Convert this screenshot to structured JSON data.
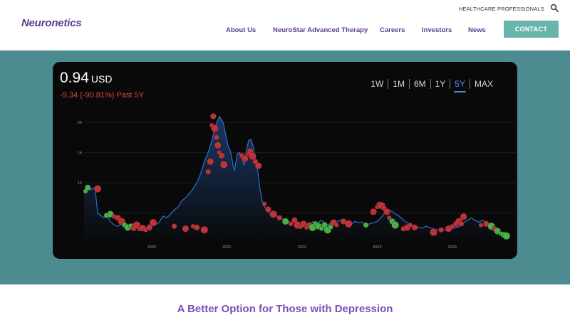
{
  "header": {
    "logo": "Neuronetics",
    "hcp_link": "HEALTHCARE PROFESSIONALS",
    "nav": [
      "About Us",
      "NeuroStar Advanced Therapy",
      "Careers",
      "Investors",
      "News"
    ],
    "contact": "CONTACT"
  },
  "stock": {
    "price": "0.94",
    "currency": "USD",
    "change": "-9.34 (-90.81%) Past 5Y",
    "ranges": [
      "1W",
      "1M",
      "6M",
      "1Y",
      "5Y",
      "MAX"
    ],
    "active_range": "5Y"
  },
  "colors": {
    "line": "#2f6fd0",
    "fill": "#0f2240",
    "up_marker": "#4cb84a",
    "down_marker": "#c8343a",
    "teal": "#4c8b8f",
    "brand": "#5b3c8e"
  },
  "chart_data": {
    "type": "line",
    "ylim": [
      0,
      22
    ],
    "y_ticks": [
      "10",
      "15",
      "20"
    ],
    "x_ticks": [
      "2020",
      "2021",
      "2022",
      "2023",
      "2024"
    ],
    "x_range": [
      2019.1,
      2024.75
    ],
    "series": [
      {
        "x": [
          2019.1,
          2019.13,
          2019.16,
          2019.19,
          2019.22,
          2019.25,
          2019.28,
          2019.32,
          2019.36,
          2019.4,
          2019.45,
          2019.5,
          2019.55,
          2019.6,
          2019.65,
          2019.7,
          2019.75,
          2019.8,
          2019.85,
          2019.9,
          2019.95,
          2020.0,
          2020.05,
          2020.1,
          2020.15,
          2020.2,
          2020.25,
          2020.3,
          2020.35,
          2020.4,
          2020.45,
          2020.5,
          2020.55,
          2020.6,
          2020.65,
          2020.7,
          2020.75,
          2020.8,
          2020.85,
          2020.9,
          2020.95,
          2021.0,
          2021.02,
          2021.04,
          2021.06,
          2021.08,
          2021.1,
          2021.12,
          2021.14,
          2021.17,
          2021.2,
          2021.23,
          2021.26,
          2021.29,
          2021.32,
          2021.35,
          2021.38,
          2021.41,
          2021.44,
          2021.47,
          2021.5,
          2021.53,
          2021.56,
          2021.6,
          2021.65,
          2021.7,
          2021.75,
          2021.8,
          2021.85,
          2021.9,
          2021.95,
          2022.0,
          2022.05,
          2022.1,
          2022.15,
          2022.2,
          2022.25,
          2022.3,
          2022.35,
          2022.4,
          2022.45,
          2022.5,
          2022.55,
          2022.6,
          2022.65,
          2022.7,
          2022.75,
          2022.8,
          2022.85,
          2022.9,
          2022.95,
          2023.0,
          2023.05,
          2023.1,
          2023.15,
          2023.2,
          2023.25,
          2023.3,
          2023.35,
          2023.4,
          2023.45,
          2023.5,
          2023.55,
          2023.6,
          2023.65,
          2023.7,
          2023.75,
          2023.8,
          2023.85,
          2023.9,
          2023.95,
          2024.0,
          2024.05,
          2024.1,
          2024.15,
          2024.2,
          2024.25,
          2024.3,
          2024.35,
          2024.4,
          2024.45,
          2024.5,
          2024.55,
          2024.6,
          2024.65,
          2024.7,
          2024.75
        ],
        "y": [
          8.5,
          9.5,
          9.0,
          8.8,
          9.2,
          8.7,
          5.0,
          4.6,
          4.2,
          4.8,
          3.6,
          3.0,
          2.8,
          3.2,
          2.6,
          2.9,
          3.2,
          2.5,
          3.0,
          2.4,
          2.8,
          3.4,
          3.0,
          3.5,
          4.5,
          4.2,
          4.8,
          5.5,
          6.0,
          7.0,
          7.5,
          8.2,
          9.0,
          10.0,
          11.5,
          13.5,
          15.0,
          17.0,
          19.5,
          21.0,
          20.0,
          17.0,
          16.0,
          15.5,
          14.5,
          13.0,
          12.0,
          13.5,
          14.8,
          15.0,
          14.0,
          13.0,
          15.5,
          17.0,
          17.2,
          16.0,
          14.0,
          12.0,
          9.0,
          7.0,
          6.0,
          5.6,
          5.0,
          4.8,
          4.6,
          4.2,
          4.0,
          3.8,
          3.4,
          3.6,
          3.2,
          3.0,
          3.4,
          3.0,
          3.6,
          3.2,
          3.8,
          3.4,
          3.0,
          3.6,
          3.4,
          3.8,
          3.6,
          3.2,
          3.0,
          3.6,
          3.4,
          3.5,
          3.0,
          3.2,
          3.4,
          3.6,
          4.2,
          5.0,
          5.6,
          5.2,
          4.8,
          4.4,
          3.8,
          3.4,
          3.2,
          2.8,
          2.6,
          2.5,
          2.8,
          2.6,
          2.4,
          2.2,
          2.0,
          2.2,
          2.1,
          2.4,
          2.6,
          2.8,
          3.4,
          3.8,
          4.2,
          3.8,
          3.5,
          3.8,
          3.4,
          3.2,
          2.4,
          2.0,
          1.6,
          1.2,
          0.94
        ]
      }
    ],
    "markers": [
      {
        "x": 2019.12,
        "y": 8.6,
        "c": "up"
      },
      {
        "x": 2019.15,
        "y": 9.2,
        "c": "up"
      },
      {
        "x": 2019.28,
        "y": 9.0,
        "c": "down"
      },
      {
        "x": 2019.4,
        "y": 4.6,
        "c": "up"
      },
      {
        "x": 2019.45,
        "y": 4.8,
        "c": "up"
      },
      {
        "x": 2019.5,
        "y": 4.4,
        "c": "down"
      },
      {
        "x": 2019.55,
        "y": 4.2,
        "c": "down"
      },
      {
        "x": 2019.6,
        "y": 3.6,
        "c": "down"
      },
      {
        "x": 2019.64,
        "y": 3.0,
        "c": "up"
      },
      {
        "x": 2019.68,
        "y": 2.6,
        "c": "up"
      },
      {
        "x": 2019.72,
        "y": 2.9,
        "c": "up"
      },
      {
        "x": 2019.76,
        "y": 2.5,
        "c": "down"
      },
      {
        "x": 2019.8,
        "y": 3.0,
        "c": "down"
      },
      {
        "x": 2019.84,
        "y": 2.4,
        "c": "down"
      },
      {
        "x": 2019.88,
        "y": 2.5,
        "c": "down"
      },
      {
        "x": 2019.92,
        "y": 2.2,
        "c": "down"
      },
      {
        "x": 2019.97,
        "y": 2.6,
        "c": "down"
      },
      {
        "x": 2020.02,
        "y": 3.4,
        "c": "down"
      },
      {
        "x": 2020.3,
        "y": 2.8,
        "c": "down"
      },
      {
        "x": 2020.45,
        "y": 2.4,
        "c": "down"
      },
      {
        "x": 2020.55,
        "y": 2.8,
        "c": "down"
      },
      {
        "x": 2020.6,
        "y": 2.6,
        "c": "down"
      },
      {
        "x": 2020.7,
        "y": 2.2,
        "c": "down"
      },
      {
        "x": 2020.75,
        "y": 11.8,
        "c": "down"
      },
      {
        "x": 2020.78,
        "y": 13.5,
        "c": "down"
      },
      {
        "x": 2020.8,
        "y": 19.5,
        "c": "down"
      },
      {
        "x": 2020.82,
        "y": 21.0,
        "c": "down"
      },
      {
        "x": 2020.84,
        "y": 19.0,
        "c": "down"
      },
      {
        "x": 2020.86,
        "y": 17.5,
        "c": "down"
      },
      {
        "x": 2020.88,
        "y": 16.2,
        "c": "down"
      },
      {
        "x": 2020.9,
        "y": 15.0,
        "c": "down"
      },
      {
        "x": 2020.93,
        "y": 14.5,
        "c": "down"
      },
      {
        "x": 2020.96,
        "y": 13.0,
        "c": "down"
      },
      {
        "x": 2021.2,
        "y": 14.5,
        "c": "down"
      },
      {
        "x": 2021.24,
        "y": 14.0,
        "c": "down"
      },
      {
        "x": 2021.28,
        "y": 14.8,
        "c": "down"
      },
      {
        "x": 2021.31,
        "y": 15.2,
        "c": "down"
      },
      {
        "x": 2021.34,
        "y": 14.4,
        "c": "down"
      },
      {
        "x": 2021.38,
        "y": 13.5,
        "c": "down"
      },
      {
        "x": 2021.42,
        "y": 12.8,
        "c": "down"
      },
      {
        "x": 2021.5,
        "y": 6.5,
        "c": "down"
      },
      {
        "x": 2021.55,
        "y": 5.6,
        "c": "down"
      },
      {
        "x": 2021.62,
        "y": 4.8,
        "c": "down"
      },
      {
        "x": 2021.7,
        "y": 4.2,
        "c": "down"
      },
      {
        "x": 2021.78,
        "y": 3.6,
        "c": "up"
      },
      {
        "x": 2021.85,
        "y": 3.2,
        "c": "down"
      },
      {
        "x": 2021.9,
        "y": 3.8,
        "c": "down"
      },
      {
        "x": 2021.94,
        "y": 3.0,
        "c": "down"
      },
      {
        "x": 2021.98,
        "y": 2.8,
        "c": "down"
      },
      {
        "x": 2022.02,
        "y": 3.2,
        "c": "down"
      },
      {
        "x": 2022.06,
        "y": 2.6,
        "c": "down"
      },
      {
        "x": 2022.1,
        "y": 3.0,
        "c": "down"
      },
      {
        "x": 2022.14,
        "y": 2.6,
        "c": "up"
      },
      {
        "x": 2022.18,
        "y": 3.2,
        "c": "up"
      },
      {
        "x": 2022.22,
        "y": 2.8,
        "c": "up"
      },
      {
        "x": 2022.26,
        "y": 2.4,
        "c": "up"
      },
      {
        "x": 2022.3,
        "y": 3.0,
        "c": "up"
      },
      {
        "x": 2022.34,
        "y": 2.2,
        "c": "up"
      },
      {
        "x": 2022.38,
        "y": 2.7,
        "c": "up"
      },
      {
        "x": 2022.42,
        "y": 3.4,
        "c": "down"
      },
      {
        "x": 2022.46,
        "y": 3.0,
        "c": "down"
      },
      {
        "x": 2022.55,
        "y": 3.6,
        "c": "down"
      },
      {
        "x": 2022.62,
        "y": 3.2,
        "c": "down"
      },
      {
        "x": 2022.85,
        "y": 3.0,
        "c": "up"
      },
      {
        "x": 2022.95,
        "y": 5.2,
        "c": "down"
      },
      {
        "x": 2023.0,
        "y": 6.0,
        "c": "down"
      },
      {
        "x": 2023.03,
        "y": 6.4,
        "c": "down"
      },
      {
        "x": 2023.06,
        "y": 6.2,
        "c": "down"
      },
      {
        "x": 2023.09,
        "y": 5.8,
        "c": "down"
      },
      {
        "x": 2023.13,
        "y": 5.2,
        "c": "down"
      },
      {
        "x": 2023.16,
        "y": 4.2,
        "c": "down"
      },
      {
        "x": 2023.2,
        "y": 3.6,
        "c": "up"
      },
      {
        "x": 2023.24,
        "y": 3.0,
        "c": "up"
      },
      {
        "x": 2023.35,
        "y": 2.4,
        "c": "down"
      },
      {
        "x": 2023.4,
        "y": 2.6,
        "c": "down"
      },
      {
        "x": 2023.44,
        "y": 3.0,
        "c": "down"
      },
      {
        "x": 2023.5,
        "y": 2.6,
        "c": "down"
      },
      {
        "x": 2023.75,
        "y": 1.8,
        "c": "down"
      },
      {
        "x": 2023.85,
        "y": 2.2,
        "c": "down"
      },
      {
        "x": 2023.95,
        "y": 2.4,
        "c": "down"
      },
      {
        "x": 2024.0,
        "y": 2.8,
        "c": "down"
      },
      {
        "x": 2024.05,
        "y": 3.2,
        "c": "down"
      },
      {
        "x": 2024.09,
        "y": 3.6,
        "c": "down"
      },
      {
        "x": 2024.12,
        "y": 3.2,
        "c": "down"
      },
      {
        "x": 2024.15,
        "y": 4.4,
        "c": "down"
      },
      {
        "x": 2024.38,
        "y": 3.0,
        "c": "down"
      },
      {
        "x": 2024.45,
        "y": 3.2,
        "c": "down"
      },
      {
        "x": 2024.52,
        "y": 2.8,
        "c": "up"
      },
      {
        "x": 2024.56,
        "y": 2.4,
        "c": "down"
      },
      {
        "x": 2024.6,
        "y": 2.0,
        "c": "up"
      },
      {
        "x": 2024.64,
        "y": 1.6,
        "c": "up"
      },
      {
        "x": 2024.68,
        "y": 1.4,
        "c": "up"
      },
      {
        "x": 2024.72,
        "y": 1.2,
        "c": "up"
      }
    ]
  },
  "tagline": "A Better Option for Those with Depression"
}
